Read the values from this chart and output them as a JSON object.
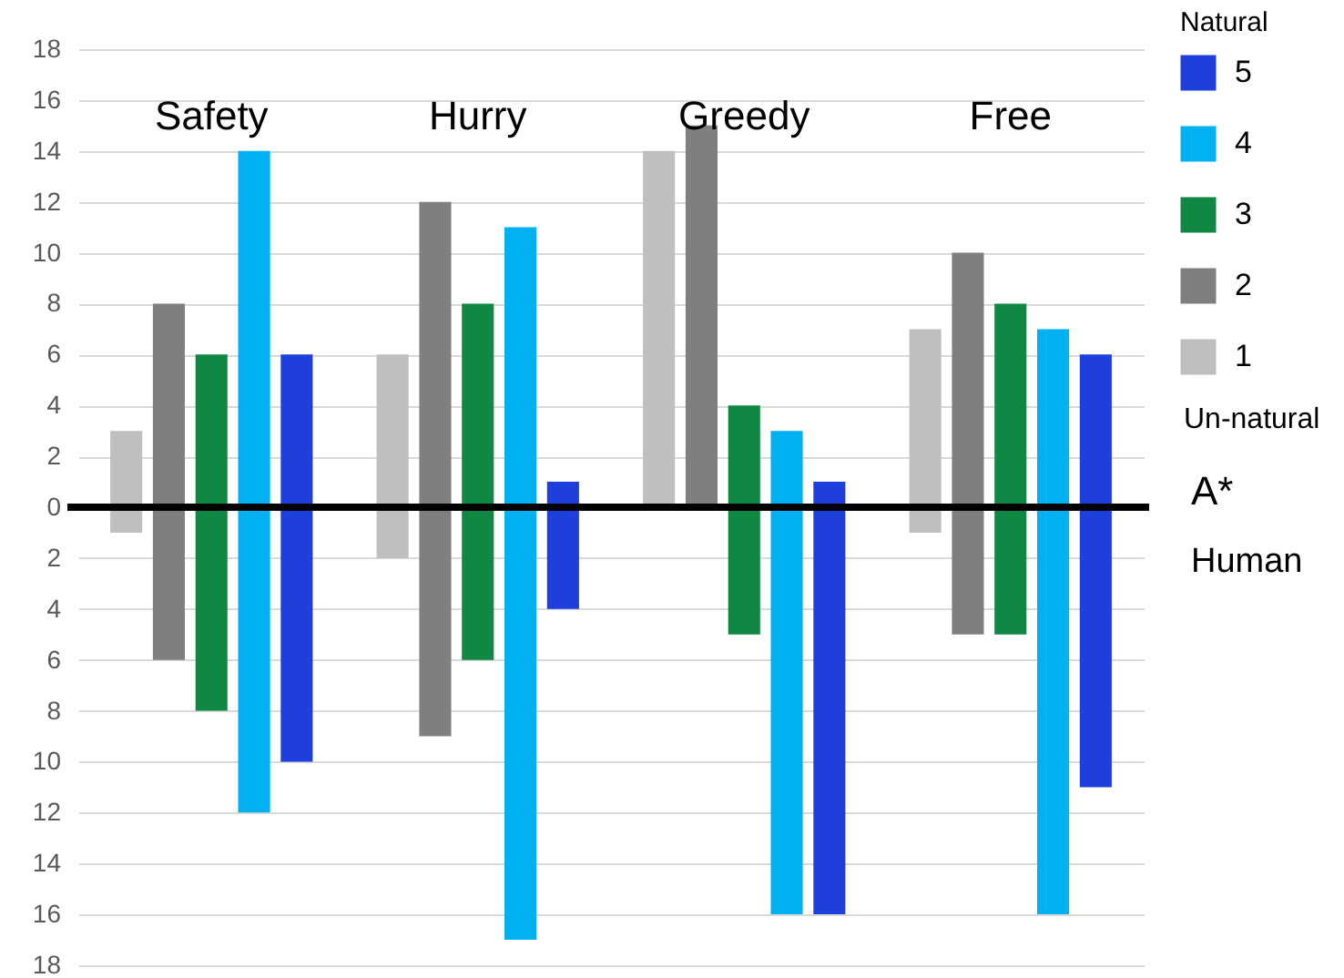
{
  "chart_data": {
    "type": "bar",
    "categories": [
      "Safety",
      "Hurry",
      "Greedy",
      "Free"
    ],
    "series": [
      {
        "name": "1",
        "color": "#bfbfbf",
        "base": [
          -1,
          -2,
          0,
          -1
        ],
        "values": [
          4,
          8,
          14,
          8
        ]
      },
      {
        "name": "2",
        "color": "#7f7f7f",
        "base": [
          -6,
          -9,
          0,
          -5
        ],
        "values": [
          14,
          21,
          15,
          15
        ]
      },
      {
        "name": "3",
        "color": "#108844",
        "base": [
          -8,
          -6,
          -5,
          -5
        ],
        "values": [
          14,
          14,
          9,
          13
        ]
      },
      {
        "name": "4",
        "color": "#00b0f0",
        "base": [
          -12,
          -17,
          -16,
          -16
        ],
        "values": [
          26,
          28,
          19,
          23
        ]
      },
      {
        "name": "5",
        "color": "#1f3fdc",
        "base": [
          -10,
          -4,
          -16,
          -11
        ],
        "values": [
          16,
          5,
          17,
          17
        ]
      }
    ],
    "ylim": [
      -18,
      18
    ],
    "yticks": [
      {
        "value": -18,
        "label": "18"
      },
      {
        "value": -16,
        "label": "16"
      },
      {
        "value": -14,
        "label": "14"
      },
      {
        "value": -12,
        "label": "12"
      },
      {
        "value": -10,
        "label": "10"
      },
      {
        "value": -8,
        "label": "8"
      },
      {
        "value": -6,
        "label": "6"
      },
      {
        "value": -4,
        "label": "4"
      },
      {
        "value": -2,
        "label": "2"
      },
      0,
      2,
      4,
      6,
      8,
      10,
      12,
      14,
      16,
      18
    ],
    "grid": "y",
    "legend": "right",
    "legend_title": "Natural",
    "ref_lines": [
      {
        "axis": "y",
        "value": 0,
        "color": "#000000"
      }
    ],
    "annotations": [
      "Un-natural",
      "A*",
      "Human"
    ]
  }
}
